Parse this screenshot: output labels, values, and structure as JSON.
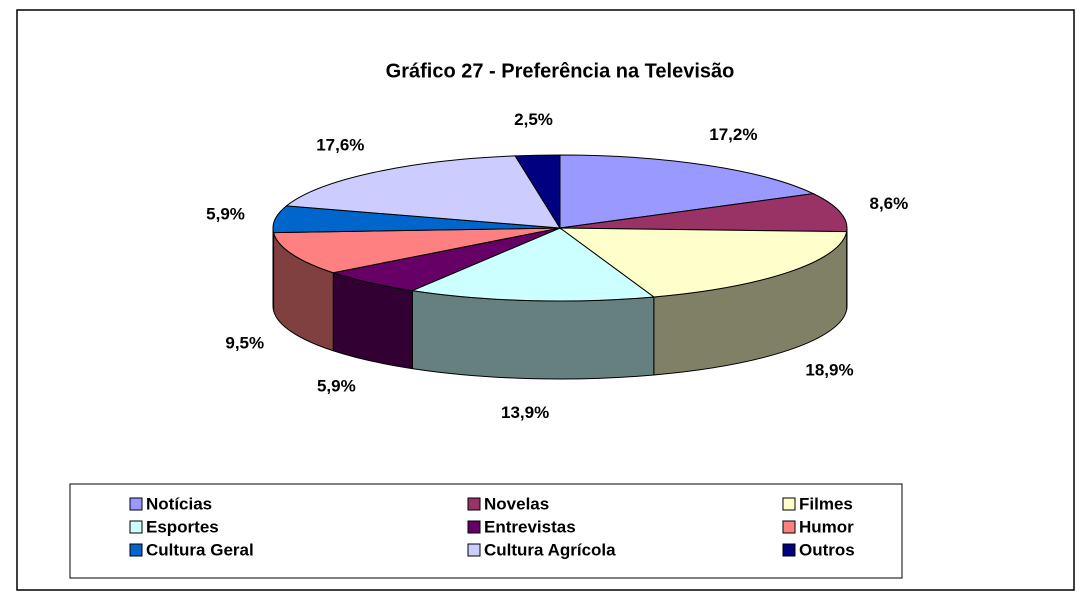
{
  "chart_data": {
    "type": "pie3d",
    "title": "Gráfico 27 - Preferência na Televisão",
    "categories": [
      "Notícias",
      "Novelas",
      "Filmes",
      "Esportes",
      "Entrevistas",
      "Humor",
      "Cultura Geral",
      "Cultura Agrícola",
      "Outros"
    ],
    "values": [
      17.2,
      8.6,
      18.9,
      13.9,
      5.9,
      9.5,
      5.9,
      17.6,
      2.5
    ],
    "value_labels": [
      "17,2%",
      "8,6%",
      "18,9%",
      "13,9%",
      "5,9%",
      "9,5%",
      "5,9%",
      "17,6%",
      "2,5%"
    ],
    "colors": [
      "#9999ff",
      "#993366",
      "#ffffcc",
      "#ccffff",
      "#660066",
      "#ff8080",
      "#0066cc",
      "#ccccff",
      "#000080"
    ],
    "legend": "bottom"
  }
}
